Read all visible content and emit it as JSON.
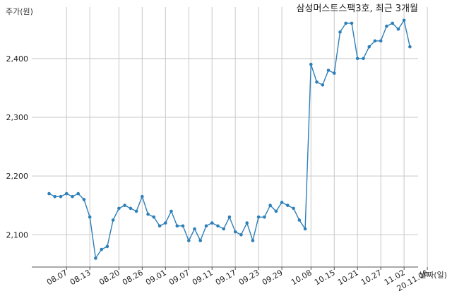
{
  "chart_data": {
    "type": "line",
    "title": "삼성머스트스팩3호, 최근 3개월",
    "ylabel": "주가(원)",
    "xlabel": "날짜(일)",
    "ylim": [
      2045,
      2490
    ],
    "yticks": [
      2100,
      2200,
      2300,
      2400
    ],
    "ytick_labels": [
      "2,100",
      "2,200",
      "2,300",
      "2,400"
    ],
    "xtick_labels": [
      "08.07",
      "08.13",
      "08.20",
      "08.26",
      "09.01",
      "09.07",
      "09.11",
      "09.17",
      "09.23",
      "09.29",
      "10.08",
      "10.15",
      "10.21",
      "10.27",
      "11.02",
      "20.11.06"
    ],
    "xtick_index": [
      3,
      7,
      12,
      16,
      20,
      24,
      28,
      32,
      36,
      40,
      45,
      49,
      53,
      57,
      61,
      65
    ],
    "grid": true,
    "colors": {
      "line": "#2e7fb8",
      "grid": "#c8c8c8",
      "axis": "#555555"
    },
    "series": [
      {
        "values": [
          2170,
          2165,
          2165,
          2170,
          2165,
          2170,
          2160,
          2130,
          2060,
          2075,
          2080,
          2125,
          2145,
          2150,
          2145,
          2140,
          2165,
          2135,
          2130,
          2115,
          2120,
          2140,
          2115,
          2115,
          2090,
          2110,
          2090,
          2115,
          2120,
          2115,
          2110,
          2130,
          2105,
          2100,
          2120,
          2090,
          2130,
          2130,
          2150,
          2140,
          2155,
          2150,
          2145,
          2125,
          2110,
          2390,
          2360,
          2355,
          2380,
          2375,
          2445,
          2460,
          2460,
          2400,
          2400,
          2420,
          2430,
          2430,
          2455,
          2460,
          2450,
          2465,
          2420
        ]
      }
    ]
  }
}
